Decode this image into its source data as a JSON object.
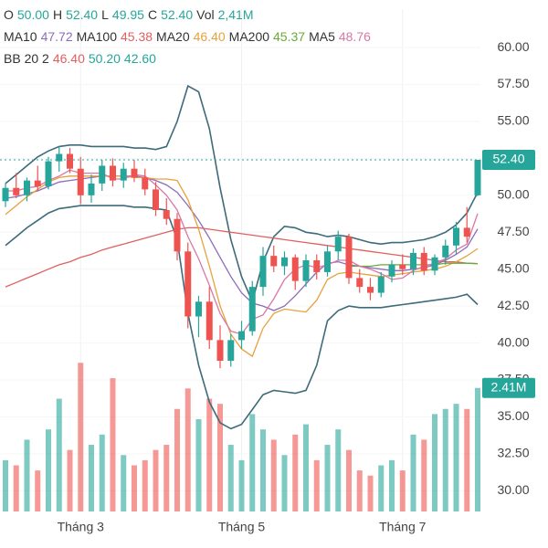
{
  "chart_data": {
    "type": "candlestick",
    "header": {
      "ohlc": [
        {
          "label": "O",
          "value": "50.00"
        },
        {
          "label": "H",
          "value": "52.40"
        },
        {
          "label": "L",
          "value": "49.95"
        },
        {
          "label": "C",
          "value": "52.40"
        },
        {
          "label": "Vol",
          "value": "2,41M"
        }
      ],
      "ohlc_color": "#26a69a"
    },
    "categories": [
      null,
      null,
      null,
      null,
      null,
      null,
      null,
      "Tháng 3",
      null,
      null,
      null,
      null,
      null,
      null,
      null,
      null,
      null,
      null,
      null,
      null,
      null,
      null,
      "Tháng 5",
      null,
      null,
      null,
      null,
      null,
      null,
      null,
      null,
      null,
      null,
      null,
      null,
      null,
      null,
      "Tháng 7",
      null,
      null,
      null,
      null,
      null,
      null,
      null
    ],
    "open": [
      49.6,
      50.5,
      50.0,
      51.0,
      50.6,
      52.3,
      52.8,
      51.8,
      50.0,
      50.8,
      52.0,
      51.0,
      51.8,
      51.2,
      50.4,
      49.0,
      48.4,
      46.2,
      41.8,
      42.8,
      40.2,
      38.8,
      40.2,
      40.8,
      43.8,
      45.9,
      45.2,
      45.8,
      44.2,
      45.6,
      44.8,
      46.2,
      47.2,
      44.4,
      43.8,
      43.4,
      44.5,
      45.3,
      45.0,
      46.1,
      44.9,
      45.8,
      46.6,
      47.8,
      50.0
    ],
    "high": [
      50.8,
      51.5,
      51.2,
      52.0,
      52.6,
      53.3,
      53.2,
      52.6,
      51.4,
      52.4,
      52.5,
      52.2,
      52.4,
      51.8,
      50.9,
      49.8,
      48.8,
      46.8,
      43.2,
      43.8,
      41.2,
      40.6,
      41.5,
      44.2,
      46.5,
      46.6,
      46.2,
      46.0,
      46.0,
      46.0,
      46.6,
      47.6,
      47.4,
      45.0,
      44.4,
      44.8,
      45.6,
      46.0,
      46.4,
      46.5,
      46.0,
      47.0,
      48.2,
      49.2,
      52.4
    ],
    "low": [
      49.2,
      49.8,
      49.6,
      50.3,
      50.4,
      51.6,
      51.5,
      49.4,
      49.5,
      50.3,
      50.6,
      50.5,
      50.9,
      50.0,
      48.6,
      48.0,
      45.6,
      41.0,
      40.4,
      39.6,
      38.3,
      38.4,
      39.6,
      40.5,
      43.2,
      44.8,
      44.6,
      43.6,
      43.8,
      44.3,
      44.5,
      45.6,
      44.0,
      43.4,
      42.9,
      43.1,
      44.1,
      44.6,
      44.6,
      44.6,
      44.6,
      45.3,
      46.0,
      46.8,
      49.95
    ],
    "close": [
      50.5,
      50.0,
      51.0,
      50.6,
      52.3,
      52.8,
      51.8,
      50.0,
      50.8,
      52.0,
      51.0,
      51.8,
      51.2,
      50.4,
      49.0,
      48.4,
      46.2,
      41.8,
      42.8,
      40.2,
      38.8,
      40.2,
      40.8,
      43.8,
      45.9,
      45.2,
      45.8,
      44.2,
      45.6,
      44.8,
      46.2,
      47.2,
      44.4,
      43.8,
      43.4,
      44.5,
      45.3,
      45.0,
      46.1,
      44.9,
      45.8,
      46.6,
      47.8,
      47.2,
      52.4
    ],
    "volume": [
      1.0,
      0.9,
      1.4,
      0.8,
      1.6,
      2.2,
      1.2,
      2.9,
      1.3,
      1.5,
      2.6,
      1.1,
      0.9,
      1.0,
      1.2,
      1.3,
      2.0,
      2.4,
      1.8,
      2.2,
      2.1,
      1.3,
      1.0,
      1.9,
      1.6,
      1.4,
      1.1,
      1.5,
      1.7,
      1.0,
      1.3,
      1.6,
      1.2,
      0.8,
      0.7,
      0.9,
      1.0,
      0.8,
      1.5,
      1.4,
      1.9,
      2.0,
      2.1,
      2.0,
      2.41
    ],
    "up_color": "#26a69a",
    "down_color": "#ef5350",
    "last_close_label": "52.40",
    "last_volume_label": "2.41M",
    "lines": [
      {
        "name": "MA10",
        "last_label": "47.72",
        "color": "#8e6bb8",
        "values": [
          49.8,
          49.9,
          50.1,
          50.3,
          50.6,
          50.9,
          51.0,
          51.1,
          51.2,
          51.3,
          51.3,
          51.3,
          51.3,
          51.2,
          51.0,
          50.7,
          50.2,
          49.3,
          48.3,
          47.1,
          45.8,
          44.5,
          43.4,
          42.7,
          42.5,
          42.2,
          42.5,
          43.2,
          44.0,
          44.8,
          45.4,
          45.5,
          45.3,
          45.2,
          45.1,
          45.0,
          44.9,
          44.9,
          45.0,
          45.1,
          45.3,
          45.6,
          46.0,
          46.5,
          47.72
        ]
      },
      {
        "name": "MA100",
        "last_label": "45.38",
        "color": "#e06060",
        "values": [
          43.8,
          44.1,
          44.4,
          44.7,
          45.0,
          45.3,
          45.5,
          45.8,
          46.0,
          46.3,
          46.5,
          46.7,
          46.9,
          47.1,
          47.3,
          47.5,
          47.7,
          47.8,
          47.8,
          47.7,
          47.6,
          47.5,
          47.4,
          47.3,
          47.2,
          47.1,
          47.0,
          46.9,
          46.8,
          46.7,
          46.6,
          46.5,
          46.4,
          46.3,
          46.2,
          46.1,
          46.0,
          45.9,
          45.8,
          45.7,
          45.6,
          45.5,
          45.5,
          45.4,
          45.38
        ]
      },
      {
        "name": "MA20",
        "last_label": "46.40",
        "color": "#e6a23c",
        "values": [
          48.7,
          49.3,
          49.9,
          50.4,
          50.9,
          51.2,
          51.3,
          51.3,
          51.3,
          51.3,
          51.3,
          51.3,
          51.2,
          51.2,
          51.1,
          51.1,
          51.0,
          49.7,
          47.7,
          45.2,
          42.5,
          40.6,
          39.6,
          39.1,
          41.0,
          42.0,
          42.3,
          42.2,
          42.1,
          42.9,
          44.3,
          44.7,
          44.8,
          44.7,
          44.6,
          44.5,
          44.6,
          44.7,
          44.8,
          44.9,
          45.0,
          45.2,
          45.5,
          45.9,
          46.4
        ]
      },
      {
        "name": "MA200",
        "last_label": "45.37",
        "color": "#6aaa3a",
        "values": [
          null,
          null,
          null,
          null,
          null,
          null,
          null,
          null,
          null,
          null,
          null,
          null,
          null,
          null,
          null,
          null,
          null,
          null,
          null,
          null,
          null,
          null,
          null,
          null,
          null,
          null,
          null,
          null,
          null,
          null,
          null,
          null,
          45.2,
          45.2,
          45.2,
          45.3,
          45.3,
          45.3,
          45.3,
          45.3,
          45.3,
          45.4,
          45.4,
          45.4,
          45.37
        ]
      },
      {
        "name": "MA5",
        "last_label": "48.76",
        "color": "#d977a5",
        "values": [
          50.3,
          50.3,
          50.5,
          50.6,
          51.0,
          51.3,
          51.7,
          51.5,
          51.5,
          51.5,
          51.1,
          51.1,
          51.4,
          51.3,
          50.7,
          50.0,
          49.0,
          47.2,
          45.7,
          43.9,
          42.0,
          40.8,
          40.6,
          41.6,
          41.9,
          43.0,
          44.3,
          45.0,
          45.3,
          45.1,
          45.3,
          45.6,
          45.6,
          45.2,
          45.0,
          44.7,
          44.3,
          44.4,
          44.9,
          45.2,
          45.4,
          45.7,
          46.3,
          46.7,
          48.76
        ]
      }
    ],
    "bollinger": {
      "name": "BB 20 2",
      "middle_label": "46.40",
      "middle_color": "#e06060",
      "band_color": "#3d6b7a",
      "upper": {
        "last_label": "50.20",
        "values": [
          50.8,
          51.4,
          52.0,
          52.6,
          53.0,
          53.3,
          53.4,
          53.4,
          53.3,
          53.3,
          53.3,
          53.3,
          53.2,
          53.2,
          53.1,
          53.3,
          55.0,
          57.4,
          57.0,
          54.5,
          50.5,
          47.0,
          44.5,
          42.8,
          45.5,
          47.2,
          47.9,
          47.8,
          47.5,
          47.4,
          47.2,
          47.3,
          47.2,
          47.0,
          46.8,
          46.7,
          46.8,
          46.8,
          46.9,
          47.0,
          47.2,
          47.5,
          48.0,
          48.8,
          50.2
        ]
      },
      "lower": {
        "last_label": "42.60",
        "values": [
          46.6,
          47.2,
          47.8,
          48.3,
          48.8,
          49.1,
          49.2,
          49.3,
          49.3,
          49.3,
          49.3,
          49.3,
          49.2,
          49.2,
          49.1,
          49.0,
          47.0,
          42.0,
          38.5,
          36.0,
          34.6,
          34.2,
          34.5,
          35.5,
          36.5,
          36.8,
          36.7,
          36.6,
          36.8,
          38.5,
          41.5,
          42.2,
          42.5,
          42.4,
          42.4,
          42.4,
          42.5,
          42.6,
          42.7,
          42.8,
          42.9,
          43.0,
          43.1,
          43.3,
          42.6
        ]
      }
    },
    "ylim": [
      28.6,
      62.6
    ],
    "yticks": [
      {
        "value": 30,
        "label": "30.00"
      },
      {
        "value": 32.5,
        "label": "32.50"
      },
      {
        "value": 35,
        "label": "35.00"
      },
      {
        "value": 37.5,
        "label": "37.50"
      },
      {
        "value": 40,
        "label": "40.00"
      },
      {
        "value": 42.5,
        "label": "42.50"
      },
      {
        "value": 45,
        "label": "45.00"
      },
      {
        "value": 47.5,
        "label": "47.50"
      },
      {
        "value": 50,
        "label": "50.00"
      },
      {
        "value": 52.5,
        "label": "52.50"
      },
      {
        "value": 55,
        "label": "55.00"
      },
      {
        "value": 57.5,
        "label": "57.50"
      },
      {
        "value": 60,
        "label": "60.00"
      }
    ],
    "y2lim": [
      0,
      9.8
    ]
  }
}
